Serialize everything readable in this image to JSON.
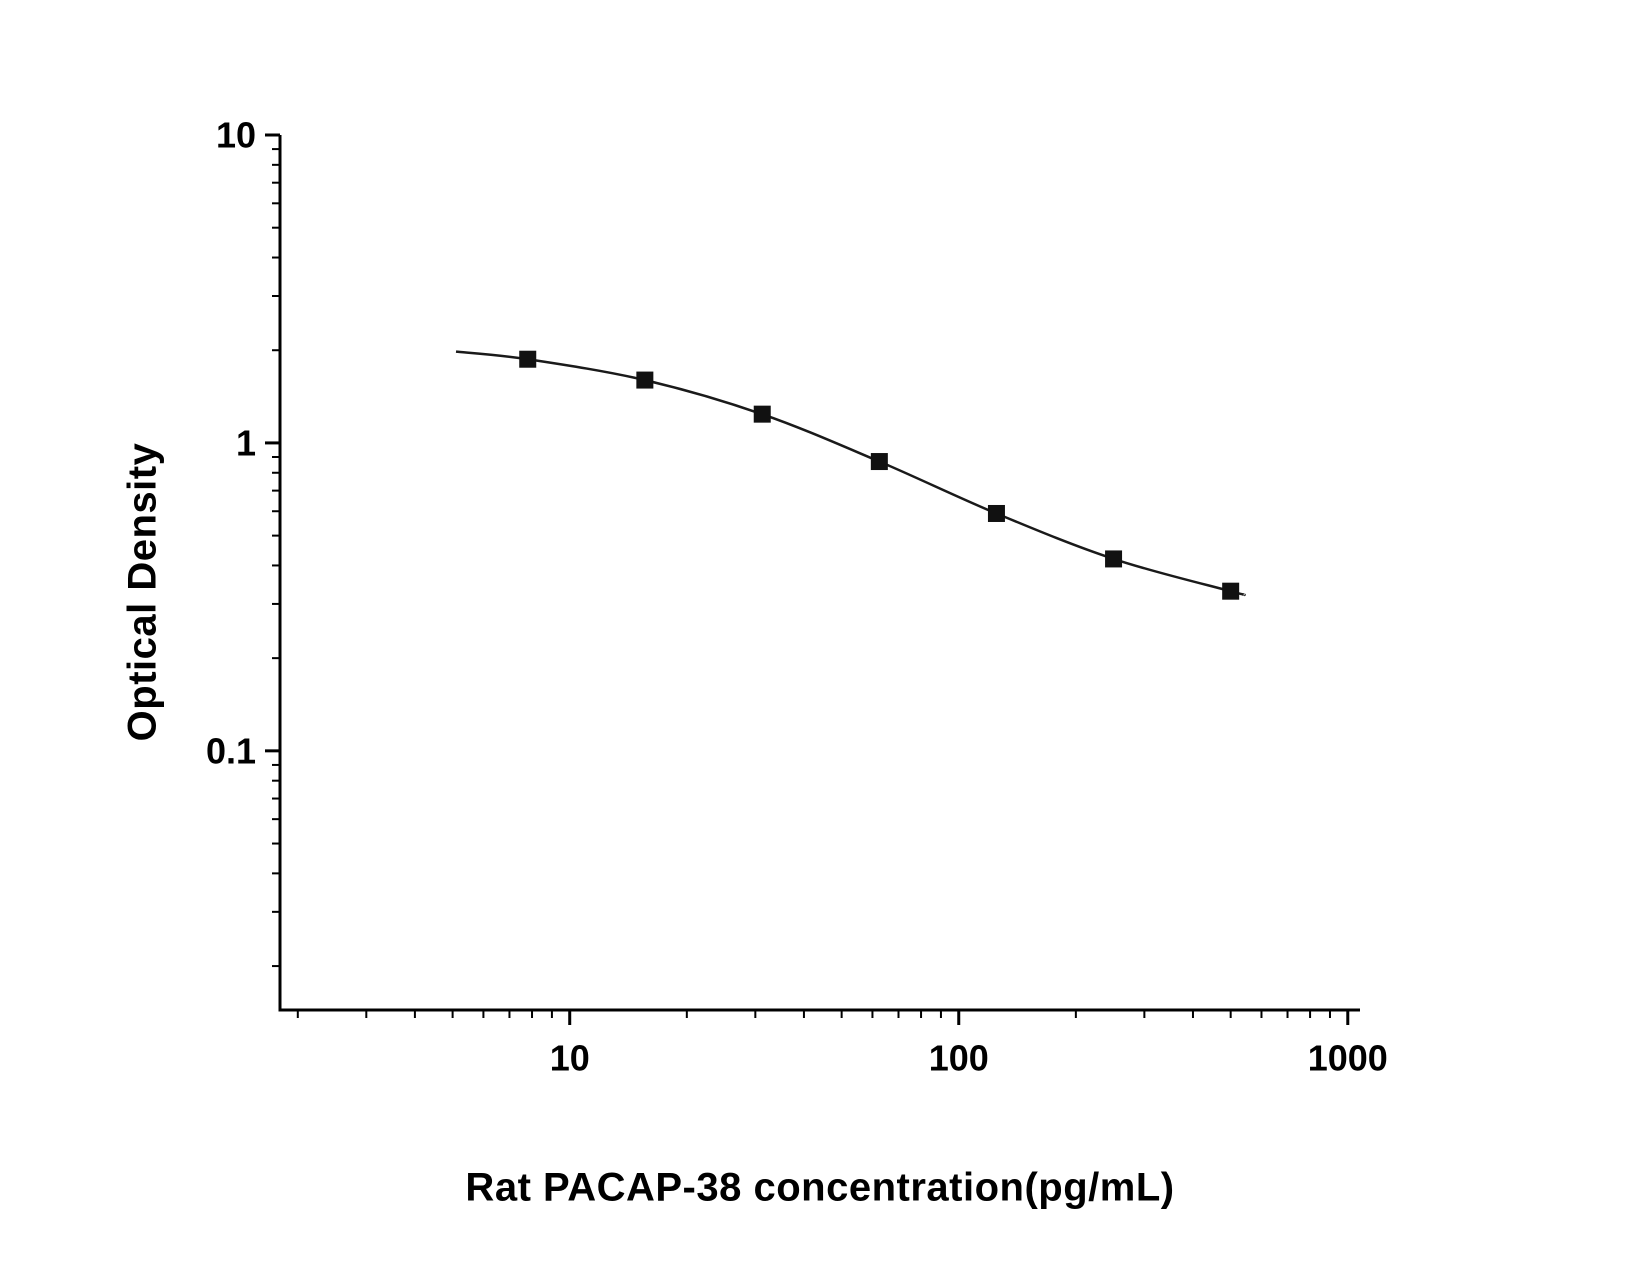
{
  "chart_data": {
    "type": "scatter",
    "subtype": "log-log standard curve with fitted line",
    "title": "",
    "xlabel": "Rat PACAP-38 concentration(pg/mL)",
    "ylabel": "Optical Density",
    "x_scale": "log",
    "y_scale": "log",
    "x": [
      7.8,
      15.6,
      31.25,
      62.5,
      125,
      250,
      500
    ],
    "y": [
      1.87,
      1.6,
      1.24,
      0.87,
      0.59,
      0.42,
      0.33
    ],
    "x_ticks": [
      {
        "v": 10,
        "label": "10"
      },
      {
        "v": 100,
        "label": "100"
      },
      {
        "v": 1000,
        "label": "1000"
      }
    ],
    "y_ticks": [
      {
        "v": 0.1,
        "label": "0.1"
      },
      {
        "v": 1,
        "label": "1"
      },
      {
        "v": 10,
        "label": "10"
      }
    ],
    "x_minor_ticks": [
      2,
      3,
      4,
      5,
      6,
      7,
      8,
      9,
      20,
      30,
      40,
      50,
      60,
      70,
      80,
      90,
      200,
      300,
      400,
      500,
      600,
      700,
      800,
      900
    ],
    "y_minor_ticks": [
      0.02,
      0.03,
      0.04,
      0.05,
      0.06,
      0.07,
      0.08,
      0.09,
      0.2,
      0.3,
      0.4,
      0.5,
      0.6,
      0.7,
      0.8,
      0.9,
      2,
      3,
      4,
      5,
      6,
      7,
      8,
      9
    ],
    "xlim": [
      1.8,
      1075
    ],
    "ylim": [
      0.0144,
      10
    ],
    "curve_extension": {
      "start": {
        "x": 5.1,
        "y": 1.98
      },
      "end": {
        "x": 540,
        "y": 0.322
      }
    },
    "marker": "filled-square",
    "legend": null,
    "grid": false,
    "colors": {
      "line": "#1a1a1a",
      "marker": "#111111",
      "axis": "#000000",
      "text": "#000000",
      "background": "#ffffff"
    }
  }
}
